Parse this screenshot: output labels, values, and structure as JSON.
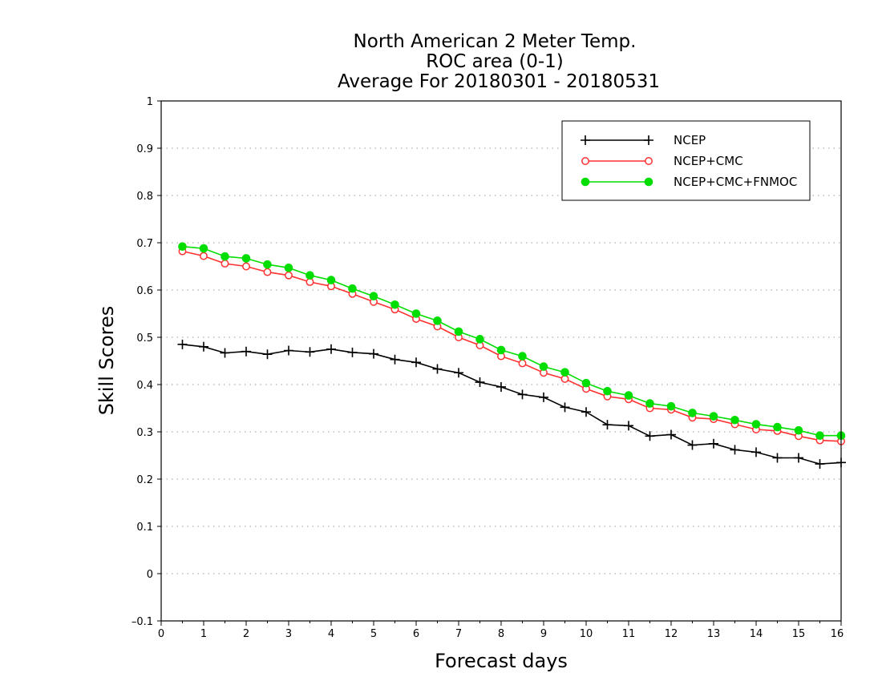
{
  "chart_data": {
    "type": "line",
    "title": [
      "North American 2 Meter Temp.",
      "ROC area (0-1)",
      "Average For 20180301 - 20180531"
    ],
    "xlabel": "Forecast days",
    "ylabel": "Skill Scores",
    "xlim": [
      0,
      16
    ],
    "ylim": [
      -0.1,
      1
    ],
    "x_ticks": [
      "0",
      "1",
      "2",
      "3",
      "4",
      "5",
      "6",
      "7",
      "8",
      "9",
      "10",
      "11",
      "12",
      "13",
      "14",
      "15",
      "16"
    ],
    "y_ticks": [
      "–0.1",
      "0",
      "0.1",
      "0.2",
      "0.3",
      "0.4",
      "0.5",
      "0.6",
      "0.7",
      "0.8",
      "0.9",
      "1"
    ],
    "y_tick_values": [
      -0.1,
      0,
      0.1,
      0.2,
      0.3,
      0.4,
      0.5,
      0.6,
      0.7,
      0.8,
      0.9,
      1
    ],
    "grid": "horizontal dotted",
    "legend_position": "top-right",
    "x": [
      0.5,
      1.0,
      1.5,
      2.0,
      2.5,
      3.0,
      3.5,
      4.0,
      4.5,
      5.0,
      5.5,
      6.0,
      6.5,
      7.0,
      7.5,
      8.0,
      8.5,
      9.0,
      9.5,
      10.0,
      10.5,
      11.0,
      11.5,
      12.0,
      12.5,
      13.0,
      13.5,
      14.0,
      14.5,
      15.0,
      15.5,
      16.0
    ],
    "series": [
      {
        "name": "NCEP",
        "color": "#000000",
        "marker": "plus",
        "values": [
          0.485,
          0.48,
          0.467,
          0.47,
          0.464,
          0.472,
          0.469,
          0.475,
          0.468,
          0.465,
          0.453,
          0.447,
          0.433,
          0.425,
          0.405,
          0.395,
          0.379,
          0.373,
          0.352,
          0.342,
          0.315,
          0.313,
          0.291,
          0.294,
          0.272,
          0.275,
          0.262,
          0.257,
          0.245,
          0.245,
          0.232,
          0.235
        ]
      },
      {
        "name": "NCEP+CMC",
        "color": "#ff3030",
        "marker": "open-circle",
        "values": [
          0.682,
          0.672,
          0.656,
          0.65,
          0.638,
          0.631,
          0.617,
          0.608,
          0.592,
          0.575,
          0.559,
          0.539,
          0.523,
          0.5,
          0.483,
          0.46,
          0.445,
          0.425,
          0.412,
          0.391,
          0.375,
          0.369,
          0.35,
          0.347,
          0.33,
          0.327,
          0.316,
          0.305,
          0.302,
          0.291,
          0.282,
          0.28
        ]
      },
      {
        "name": "NCEP+CMC+FNMOC",
        "color": "#00dd00",
        "marker": "filled-circle",
        "values": [
          0.692,
          0.688,
          0.671,
          0.667,
          0.654,
          0.647,
          0.631,
          0.621,
          0.603,
          0.587,
          0.569,
          0.55,
          0.535,
          0.512,
          0.496,
          0.473,
          0.46,
          0.438,
          0.426,
          0.403,
          0.386,
          0.377,
          0.36,
          0.354,
          0.34,
          0.333,
          0.325,
          0.316,
          0.31,
          0.303,
          0.292,
          0.292
        ]
      }
    ]
  }
}
